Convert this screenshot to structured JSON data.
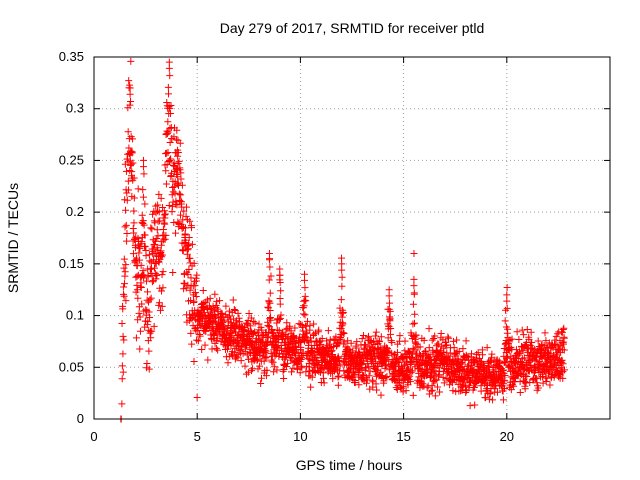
{
  "chart_data": {
    "type": "scatter",
    "title": "Day 279 of 2017, SRMTID for receiver ptld",
    "xlabel": "GPS time / hours",
    "ylabel": "SRMTID / TECUs",
    "xlim": [
      0,
      25
    ],
    "ylim": [
      0,
      0.35
    ],
    "xticks": [
      0,
      5,
      10,
      15,
      20
    ],
    "yticks": [
      0,
      0.05,
      0.1,
      0.15,
      0.2,
      0.25,
      0.3,
      0.35
    ],
    "xtick_labels": [
      "0",
      "5",
      "10",
      "15",
      "20"
    ],
    "ytick_labels": [
      "0",
      "0.05",
      "0.1",
      "0.15",
      "0.2",
      "0.25",
      "0.3",
      "0.35"
    ],
    "grid": true,
    "marker": "+",
    "color": "#ff0000",
    "x_range_of_points": [
      1.3,
      22.8
    ],
    "series": [
      {
        "name": "SRMTID ptld",
        "envelope": [
          {
            "x": 1.3,
            "y": 0.0
          },
          {
            "x": 1.5,
            "y": 0.17
          },
          {
            "x": 1.7,
            "y": 0.27
          },
          {
            "x": 1.85,
            "y": 0.22
          },
          {
            "x": 2.0,
            "y": 0.16
          },
          {
            "x": 2.3,
            "y": 0.12
          },
          {
            "x": 2.6,
            "y": 0.1
          },
          {
            "x": 3.0,
            "y": 0.17
          },
          {
            "x": 3.3,
            "y": 0.15
          },
          {
            "x": 3.55,
            "y": 0.27
          },
          {
            "x": 3.8,
            "y": 0.2
          },
          {
            "x": 4.0,
            "y": 0.24
          },
          {
            "x": 4.3,
            "y": 0.18
          },
          {
            "x": 4.6,
            "y": 0.14
          },
          {
            "x": 5.0,
            "y": 0.1
          },
          {
            "x": 6.0,
            "y": 0.09
          },
          {
            "x": 7.0,
            "y": 0.08
          },
          {
            "x": 8.0,
            "y": 0.07
          },
          {
            "x": 9.0,
            "y": 0.07
          },
          {
            "x": 10.0,
            "y": 0.065
          },
          {
            "x": 11.0,
            "y": 0.06
          },
          {
            "x": 12.0,
            "y": 0.06
          },
          {
            "x": 13.0,
            "y": 0.055
          },
          {
            "x": 14.0,
            "y": 0.055
          },
          {
            "x": 15.0,
            "y": 0.05
          },
          {
            "x": 16.0,
            "y": 0.05
          },
          {
            "x": 17.0,
            "y": 0.055
          },
          {
            "x": 18.0,
            "y": 0.045
          },
          {
            "x": 19.0,
            "y": 0.04
          },
          {
            "x": 20.0,
            "y": 0.05
          },
          {
            "x": 21.0,
            "y": 0.055
          },
          {
            "x": 22.0,
            "y": 0.055
          },
          {
            "x": 22.8,
            "y": 0.06
          }
        ],
        "peaks": [
          {
            "x": 1.75,
            "y": 0.32
          },
          {
            "x": 2.4,
            "y": 0.25
          },
          {
            "x": 3.65,
            "y": 0.345
          },
          {
            "x": 4.05,
            "y": 0.26
          },
          {
            "x": 8.5,
            "y": 0.16
          },
          {
            "x": 9.0,
            "y": 0.145
          },
          {
            "x": 10.2,
            "y": 0.14
          },
          {
            "x": 12.0,
            "y": 0.15
          },
          {
            "x": 14.3,
            "y": 0.125
          },
          {
            "x": 15.5,
            "y": 0.135
          },
          {
            "x": 20.0,
            "y": 0.12
          }
        ]
      }
    ]
  }
}
